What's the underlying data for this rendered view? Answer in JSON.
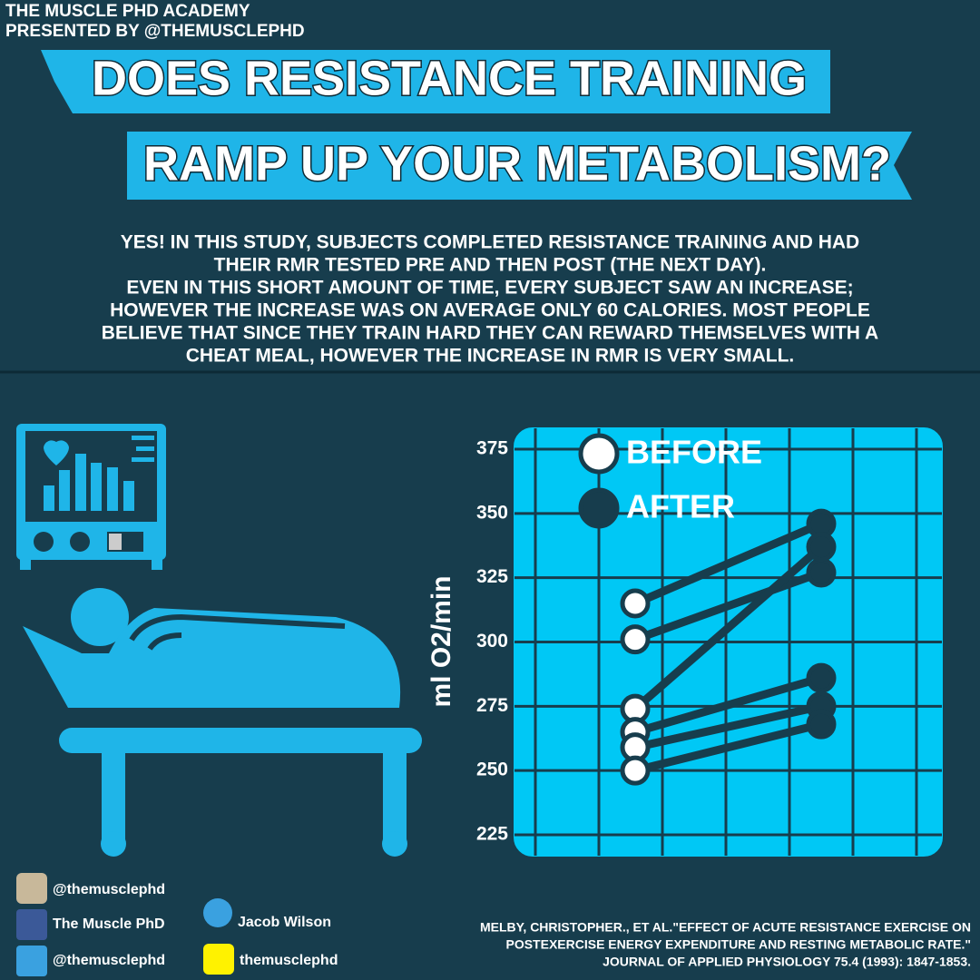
{
  "header": {
    "brand": [
      "THE MUSCLE PHD ACADEMY",
      "PRESENTED BY @THEMUSCLEPHD"
    ],
    "title": [
      "DOES RESISTANCE TRAINING",
      "RAMP UP YOUR METABOLISM?"
    ]
  },
  "summary": [
    "YES! IN THIS STUDY, SUBJECTS COMPLETED RESISTANCE TRAINING AND HAD",
    "THEIR RMR TESTED PRE AND THEN POST (THE NEXT DAY).",
    "EVEN IN THIS SHORT AMOUNT OF TIME, EVERY SUBJECT SAW AN INCREASE;",
    "HOWEVER THE INCREASE WAS ON AVERAGE ONLY 60 CALORIES. MOST PEOPLE",
    "BELIEVE THAT SINCE THEY TRAIN HARD THEY CAN REWARD THEMSELVES WITH A",
    "CHEAT MEAL, HOWEVER THE INCREASE IN RMR IS VERY SMALL."
  ],
  "chart_data": {
    "type": "line",
    "y_label": "ml O2/min",
    "categories": [
      "BEFORE",
      "AFTER"
    ],
    "marker_colors": [
      "#ffffff",
      "#173d4d"
    ],
    "line_color": "#173d4d",
    "series": [
      {
        "values": [
          315,
          346
        ]
      },
      {
        "values": [
          301,
          327
        ]
      },
      {
        "values": [
          274,
          337
        ]
      },
      {
        "values": [
          265,
          286
        ]
      },
      {
        "values": [
          259,
          275
        ]
      },
      {
        "values": [
          250,
          268
        ]
      }
    ],
    "ylim": [
      225,
      375
    ],
    "yticks": [
      225,
      250,
      275,
      300,
      325,
      350,
      375
    ],
    "grid": true
  },
  "social": {
    "instagram": "@themusclephd",
    "facebook": "The Muscle PhD",
    "periscope": "Jacob Wilson",
    "twitter": "@themusclephd",
    "snapchat": "themusclephd"
  },
  "citation": [
    "MELBY, CHRISTOPHER., ET AL.\"EFFECT OF ACUTE RESISTANCE EXERCISE ON",
    "POSTEXERCISE ENERGY EXPENDITURE AND RESTING METABOLIC RATE.\"",
    "JOURNAL OF APPLIED PHYSIOLOGY 75.4 (1993): 1847-1853."
  ]
}
